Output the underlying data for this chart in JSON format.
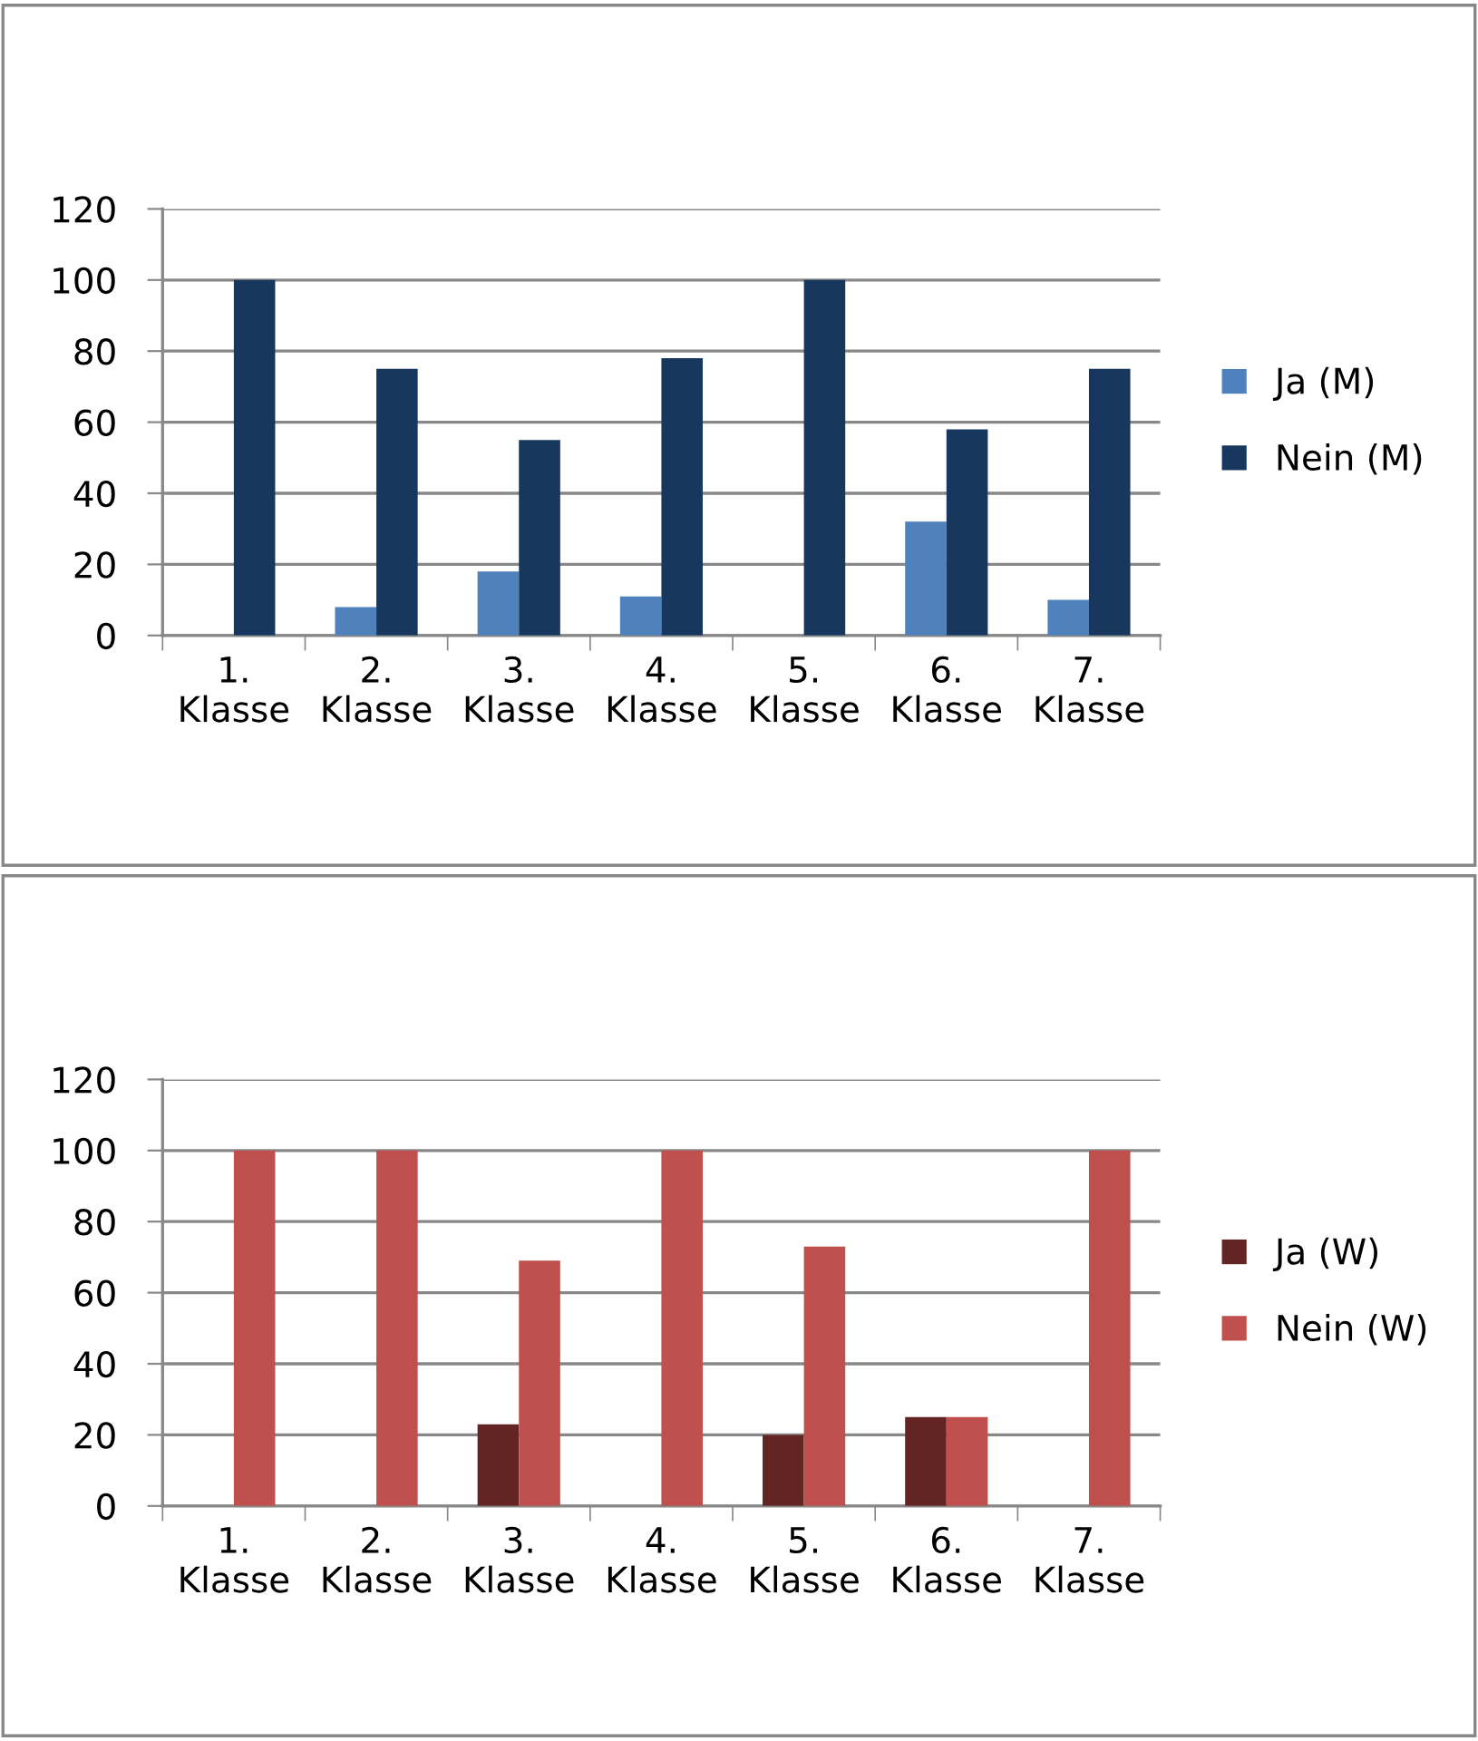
{
  "chart_data": [
    {
      "type": "bar",
      "categories": [
        "1.\nKlasse",
        "2.\nKlasse",
        "3.\nKlasse",
        "4.\nKlasse",
        "5.\nKlasse",
        "6.\nKlasse",
        "7.\nKlasse"
      ],
      "series": [
        {
          "name": "Ja (M)",
          "color": "#4f81bd",
          "values": [
            0,
            8,
            18,
            11,
            0,
            32,
            10
          ]
        },
        {
          "name": "Nein (M)",
          "color": "#17375e",
          "values": [
            100,
            75,
            55,
            78,
            100,
            58,
            75
          ]
        }
      ],
      "ylim": [
        0,
        120
      ],
      "yticks": [
        0,
        20,
        40,
        60,
        80,
        100,
        120
      ],
      "grid": "y",
      "legend": "right"
    },
    {
      "type": "bar",
      "categories": [
        "1.\nKlasse",
        "2.\nKlasse",
        "3.\nKlasse",
        "4.\nKlasse",
        "5.\nKlasse",
        "6.\nKlasse",
        "7.\nKlasse"
      ],
      "series": [
        {
          "name": "Ja (W)",
          "color": "#632523",
          "values": [
            0,
            0,
            23,
            0,
            20,
            25,
            0
          ]
        },
        {
          "name": "Nein (W)",
          "color": "#c0504d",
          "values": [
            100,
            100,
            69,
            100,
            73,
            25,
            100
          ]
        }
      ],
      "ylim": [
        0,
        120
      ],
      "yticks": [
        0,
        20,
        40,
        60,
        80,
        100,
        120
      ],
      "grid": "y",
      "legend": "right"
    }
  ]
}
